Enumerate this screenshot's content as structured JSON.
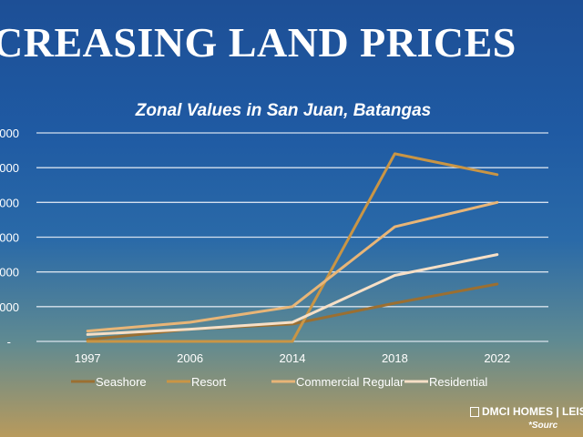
{
  "headline": "CREASING LAND PRICES",
  "footer": {
    "logo_text": "DMCI HOMES | LEISU",
    "source_note": "*Sourc"
  },
  "colors": {
    "seashore": "#9b6f31",
    "resort": "#c99545",
    "commercial_regular": "#e8b577",
    "residential": "#f6dfc6",
    "gridline": "#e8eef7",
    "text": "#ffffff"
  },
  "chart_data": {
    "type": "line",
    "title": "Zonal Values in San Juan, Batangas",
    "categories": [
      "1997",
      "2006",
      "2014",
      "2018",
      "2022"
    ],
    "y_tick_labels": [
      "-",
      "000",
      "000",
      "000",
      "000",
      "000",
      "000"
    ],
    "ylim": [
      0,
      6
    ],
    "grid": true,
    "legend_position": "bottom",
    "series": [
      {
        "name": "Seashore",
        "values": [
          0.05,
          0.35,
          0.5,
          1.1,
          1.65
        ]
      },
      {
        "name": "Resort",
        "values": [
          0.0,
          0.0,
          0.0,
          5.4,
          4.8
        ]
      },
      {
        "name": "Commercial Regular",
        "values": [
          0.3,
          0.55,
          1.0,
          3.3,
          4.0
        ]
      },
      {
        "name": "Residential",
        "values": [
          0.2,
          0.35,
          0.55,
          1.9,
          2.5
        ]
      }
    ]
  }
}
